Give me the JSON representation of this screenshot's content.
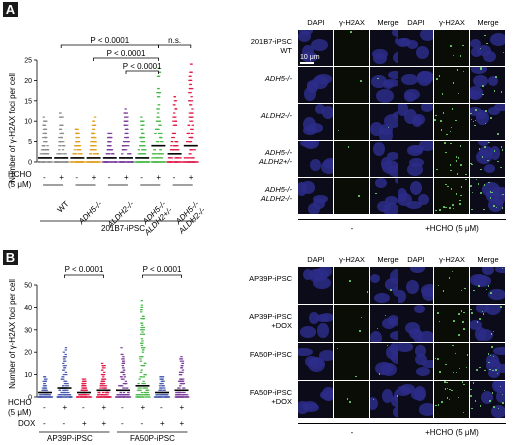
{
  "panel_a": {
    "letter": "A",
    "chart_data": {
      "type": "scatter",
      "ylabel": "Number of γ-H2AX foci per cell",
      "ylim": [
        0,
        25
      ],
      "yticks": [
        0,
        5,
        10,
        15,
        20,
        25
      ],
      "hcho_row_label": "HCHO",
      "hcho_unit": "(5 μM)",
      "hcho_signs": [
        "-",
        "+",
        "-",
        "+",
        "-",
        "+",
        "-",
        "+",
        "-",
        "+"
      ],
      "genotypes": [
        "WT",
        "ADH5-/-",
        "ALDH2-/-",
        "ADH5-/- ALDH2+/-",
        "ADH5-/- ALDH2-/-"
      ],
      "group_label": "201B7-iPSC",
      "series": [
        {
          "genotype": "WT",
          "hcho": "-",
          "median": 1,
          "max": 11,
          "color": "#8c8c8c"
        },
        {
          "genotype": "WT",
          "hcho": "+",
          "median": 1,
          "max": 13,
          "color": "#8c8c8c"
        },
        {
          "genotype": "ADH5-/-",
          "hcho": "-",
          "median": 1,
          "max": 9,
          "color": "#e0a020"
        },
        {
          "genotype": "ADH5-/-",
          "hcho": "+",
          "median": 1,
          "max": 11,
          "color": "#e0a020"
        },
        {
          "genotype": "ALDH2-/-",
          "hcho": "-",
          "median": 1,
          "max": 7,
          "color": "#7a3f9a"
        },
        {
          "genotype": "ALDH2-/-",
          "hcho": "+",
          "median": 1,
          "max": 13,
          "color": "#7a3f9a"
        },
        {
          "genotype": "ADH5-/- ALDH2+/-",
          "hcho": "-",
          "median": 1,
          "max": 11,
          "color": "#48b848"
        },
        {
          "genotype": "ADH5-/- ALDH2+/-",
          "hcho": "+",
          "median": 4,
          "max": 24,
          "color": "#48b848"
        },
        {
          "genotype": "ADH5-/- ALDH2-/-",
          "hcho": "-",
          "median": 2,
          "max": 16,
          "color": "#e01b4a"
        },
        {
          "genotype": "ADH5-/- ALDH2-/-",
          "hcho": "+",
          "median": 4,
          "max": 25,
          "color": "#e01b4a"
        }
      ],
      "comparisons": [
        {
          "label": "P < 0.0001"
        },
        {
          "label": "P < 0.0001"
        },
        {
          "label": "P < 0.0001"
        },
        {
          "label": "n.s."
        }
      ]
    },
    "images": {
      "channels": [
        "DAPI",
        "γ-H2AX",
        "Merge"
      ],
      "scale_bar": "10 μm",
      "rows": [
        "201B7-iPSC\nWT",
        "ADH5-/-",
        "ALDH2-/-",
        "ADH5-/-\nALDH2+/-",
        "ADH5-/-\nALDH2-/-"
      ],
      "conditions": [
        "-",
        "+HCHO (5 μM)"
      ]
    }
  },
  "panel_b": {
    "letter": "B",
    "chart_data": {
      "type": "scatter",
      "ylabel": "Number of γ-H2AX foci per cell",
      "ylim": [
        0,
        50
      ],
      "yticks": [
        0,
        10,
        20,
        30,
        40,
        50
      ],
      "hcho_row_label": "HCHO",
      "hcho_unit": "(5 μM)",
      "dox_row_label": "DOX",
      "hcho_signs": [
        "-",
        "+",
        "-",
        "+",
        "-",
        "+",
        "-",
        "+"
      ],
      "dox_signs": [
        "-",
        "-",
        "+",
        "+",
        "-",
        "-",
        "+",
        "+"
      ],
      "group_labels": [
        "AP39P-iPSC",
        "FA50P-iPSC"
      ],
      "series": [
        {
          "line": "AP39P",
          "hcho": "-",
          "dox": "-",
          "median": 2,
          "max": 9,
          "color": "#4a5bb0"
        },
        {
          "line": "AP39P",
          "hcho": "+",
          "dox": "-",
          "median": 4,
          "max": 22,
          "color": "#4a5bb0"
        },
        {
          "line": "AP39P",
          "hcho": "-",
          "dox": "+",
          "median": 2,
          "max": 8,
          "color": "#e01b4a"
        },
        {
          "line": "AP39P",
          "hcho": "+",
          "dox": "+",
          "median": 3,
          "max": 15,
          "color": "#e01b4a"
        },
        {
          "line": "FA50P",
          "hcho": "-",
          "dox": "-",
          "median": 3,
          "max": 22,
          "color": "#7a3f9a"
        },
        {
          "line": "FA50P",
          "hcho": "+",
          "dox": "-",
          "median": 5,
          "max": 44,
          "color": "#48b848"
        },
        {
          "line": "FA50P",
          "hcho": "-",
          "dox": "+",
          "median": 2,
          "max": 10,
          "color": "#4a5bb0"
        },
        {
          "line": "FA50P",
          "hcho": "+",
          "dox": "+",
          "median": 3,
          "max": 18,
          "color": "#7a3f9a"
        }
      ],
      "comparisons": [
        {
          "label": "P < 0.0001"
        },
        {
          "label": "P < 0.0001"
        }
      ]
    },
    "images": {
      "channels": [
        "DAPI",
        "γ-H2AX",
        "Merge"
      ],
      "rows": [
        "AP39P-iPSC",
        "AP39P-iPSC\n+DOX",
        "FA50P-iPSC",
        "FA50P-iPSC\n+DOX"
      ],
      "conditions": [
        "-",
        "+HCHO (5 μM)"
      ]
    }
  }
}
